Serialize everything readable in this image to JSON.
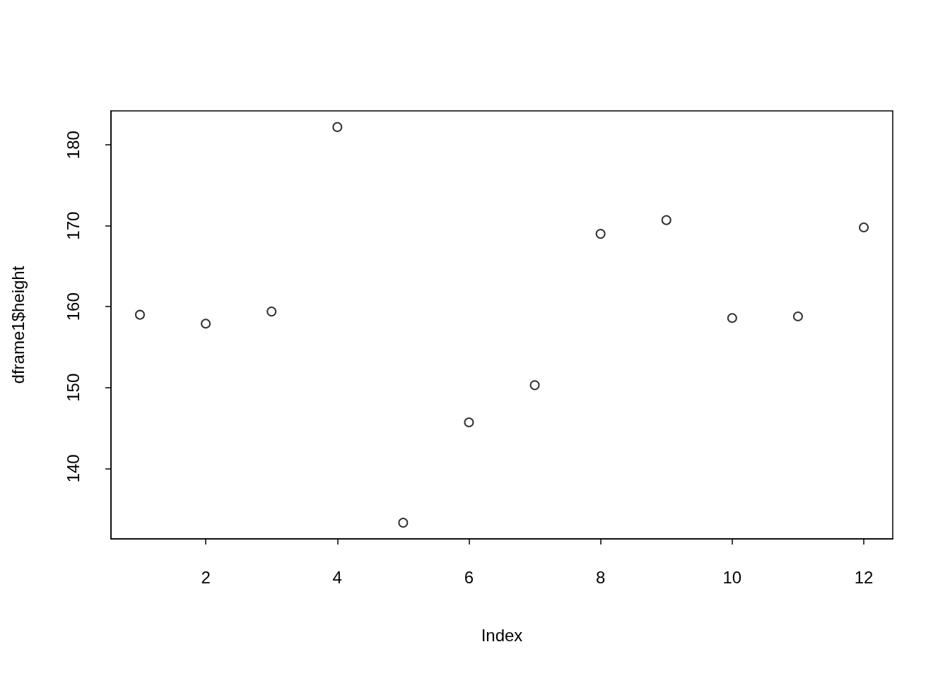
{
  "chart_data": {
    "type": "scatter",
    "xlabel": "Index",
    "ylabel": "dframe1$height",
    "x": [
      1,
      2,
      3,
      4,
      5,
      6,
      7,
      8,
      9,
      10,
      11,
      12
    ],
    "values": [
      159.0,
      157.9,
      159.4,
      182.2,
      133.3,
      145.7,
      150.3,
      169.0,
      170.7,
      158.6,
      158.8,
      169.8
    ],
    "color": "#000000",
    "marker": "circle",
    "xlim": [
      0.56,
      12.44
    ],
    "ylim": [
      131.3,
      184.2
    ],
    "xticks": [
      2,
      4,
      6,
      8,
      10,
      12
    ],
    "yticks": [
      140,
      150,
      160,
      170,
      180
    ]
  }
}
